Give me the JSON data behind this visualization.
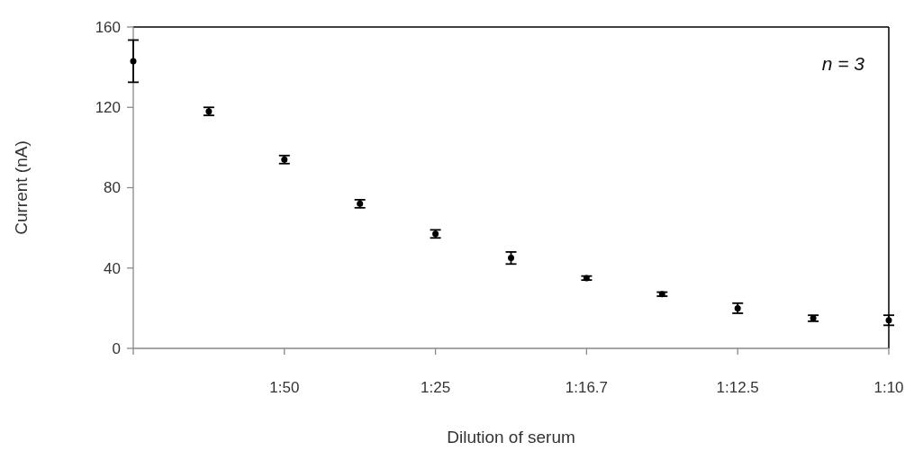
{
  "chart_data": {
    "type": "scatter",
    "xlabel": "Dilution of serum",
    "ylabel": "Current (nA)",
    "categories": [
      null,
      null,
      "1:50",
      null,
      "1:25",
      null,
      "1:16.7",
      null,
      "1:12.5",
      null,
      "1:10"
    ],
    "values": [
      143,
      118,
      94,
      72,
      57,
      45,
      35,
      27,
      20,
      15,
      14
    ],
    "errors": [
      10.5,
      2,
      2,
      2,
      2,
      3,
      1,
      1,
      2.5,
      1.5,
      2.5
    ],
    "color": "#000000",
    "marker": "circle",
    "ylim": [
      0,
      160
    ],
    "yticks": [
      0,
      40,
      80,
      120,
      160
    ],
    "grid": false,
    "annotations": [
      "n = 3"
    ]
  }
}
